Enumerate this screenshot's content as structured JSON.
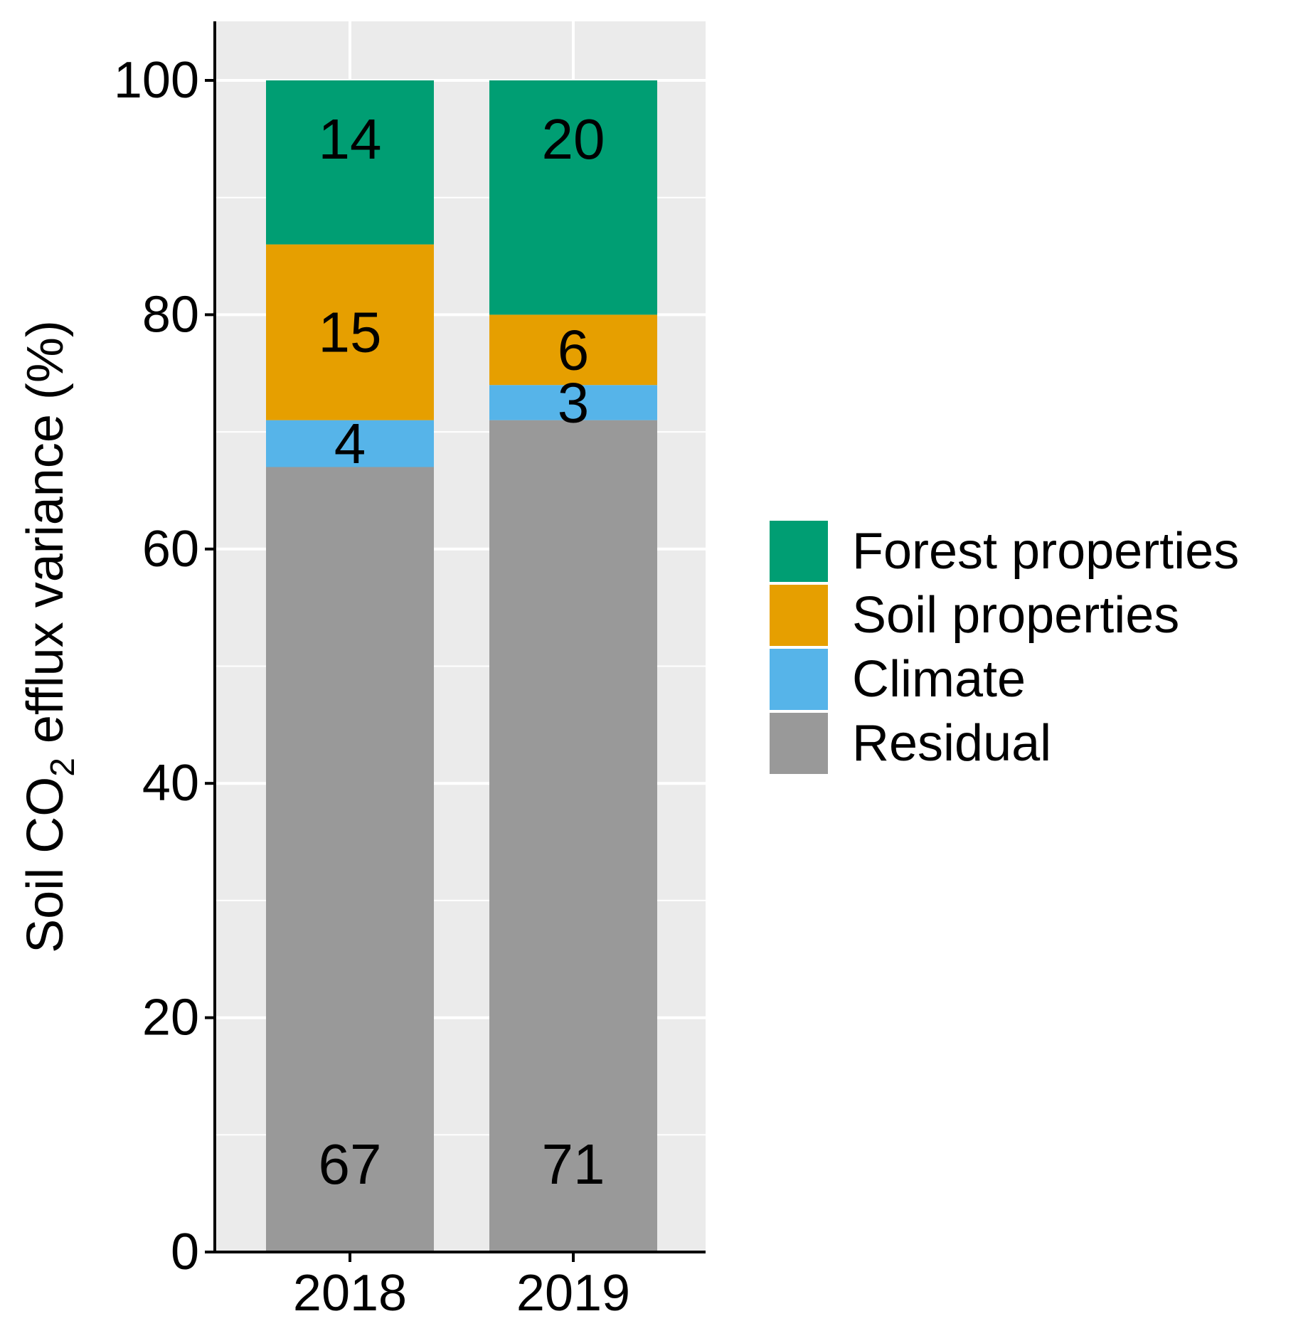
{
  "chart_data": {
    "type": "bar",
    "stacked": true,
    "title": "",
    "xlabel": "",
    "ylabel": {
      "prefix": "Soil CO",
      "subscript": "2",
      "suffix": " efflux variance (%)"
    },
    "ylim": [
      0,
      105
    ],
    "yticks": [
      0,
      20,
      40,
      60,
      80,
      100
    ],
    "grid": true,
    "categories": [
      "2018",
      "2019"
    ],
    "series": [
      {
        "name": "Residual",
        "color": "#999999",
        "values": [
          67,
          71
        ]
      },
      {
        "name": "Climate",
        "color": "#56B4E9",
        "values": [
          4,
          3
        ]
      },
      {
        "name": "Soil properties",
        "color": "#E69F00",
        "values": [
          15,
          6
        ]
      },
      {
        "name": "Forest properties",
        "color": "#009E73",
        "values": [
          14,
          20
        ]
      }
    ],
    "legend": {
      "position": "right",
      "order": [
        "Forest properties",
        "Soil properties",
        "Climate",
        "Residual"
      ]
    },
    "panel_background": "#EBEBEB",
    "grid_color": "#FFFFFF"
  }
}
